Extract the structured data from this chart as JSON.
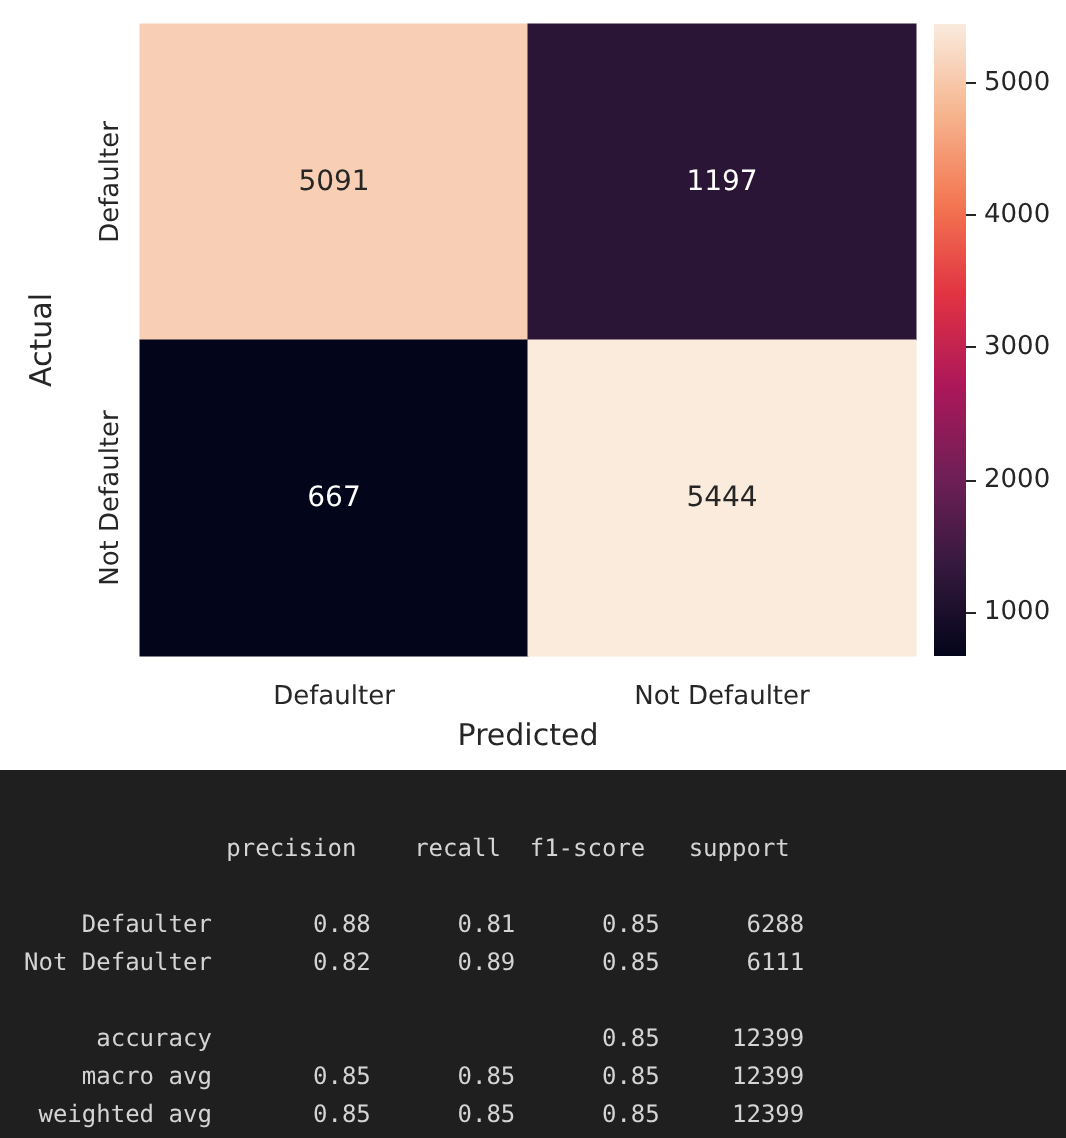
{
  "chart_data": [
    {
      "type": "heatmap",
      "xlabel": "Predicted",
      "ylabel": "Actual",
      "categories": [
        "Defaulter",
        "Not Defaulter"
      ],
      "y_categories": [
        "Defaulter",
        "Not Defaulter"
      ],
      "cells": [
        [
          5091,
          1197
        ],
        [
          667,
          5444
        ]
      ],
      "data_labels": true,
      "clim": [
        667,
        5444
      ],
      "cticks": [
        1000,
        2000,
        3000,
        4000,
        5000
      ]
    },
    {
      "type": "other",
      "annotations": [
        "              precision    recall  f1-score   support",
        "    Defaulter       0.88      0.81      0.85      6288",
        "Not Defaulter       0.82      0.89      0.85      6111",
        "     accuracy                           0.85     12399",
        "    macro avg       0.85      0.85      0.85     12399",
        " weighted avg       0.85      0.85      0.85     12399"
      ]
    }
  ]
}
